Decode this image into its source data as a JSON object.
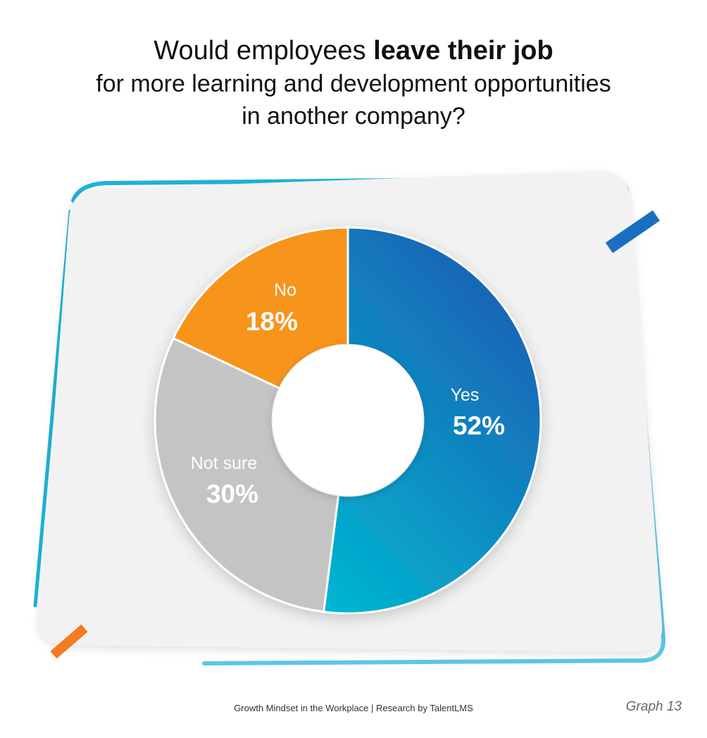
{
  "title": {
    "line1_prefix": "Would employees ",
    "line1_bold": "leave their job",
    "line2": "for more learning and development opportunities",
    "line3": "in another company?"
  },
  "chart_data": {
    "type": "pie",
    "donut": true,
    "title": "Would employees leave their job for more learning and development opportunities in another company?",
    "categories": [
      "Yes",
      "Not sure",
      "No"
    ],
    "values": [
      52,
      30,
      18
    ],
    "labels": [
      "52%",
      "30%",
      "18%"
    ],
    "colors": [
      "#0aa9cf",
      "#c4c4c4",
      "#f7941d"
    ],
    "yes_gradient": [
      "#00b8d1",
      "#1a63b5"
    ]
  },
  "footer": {
    "text": "Growth Mindset in the Workplace | Research by TalentLMS",
    "graph_label": "Graph 13"
  },
  "decor": {
    "card_color": "#f2f2f2",
    "blue_accent": "#1b6fc0",
    "cyan_accent": "#1fb3d9",
    "orange_accent": "#f47c20"
  }
}
